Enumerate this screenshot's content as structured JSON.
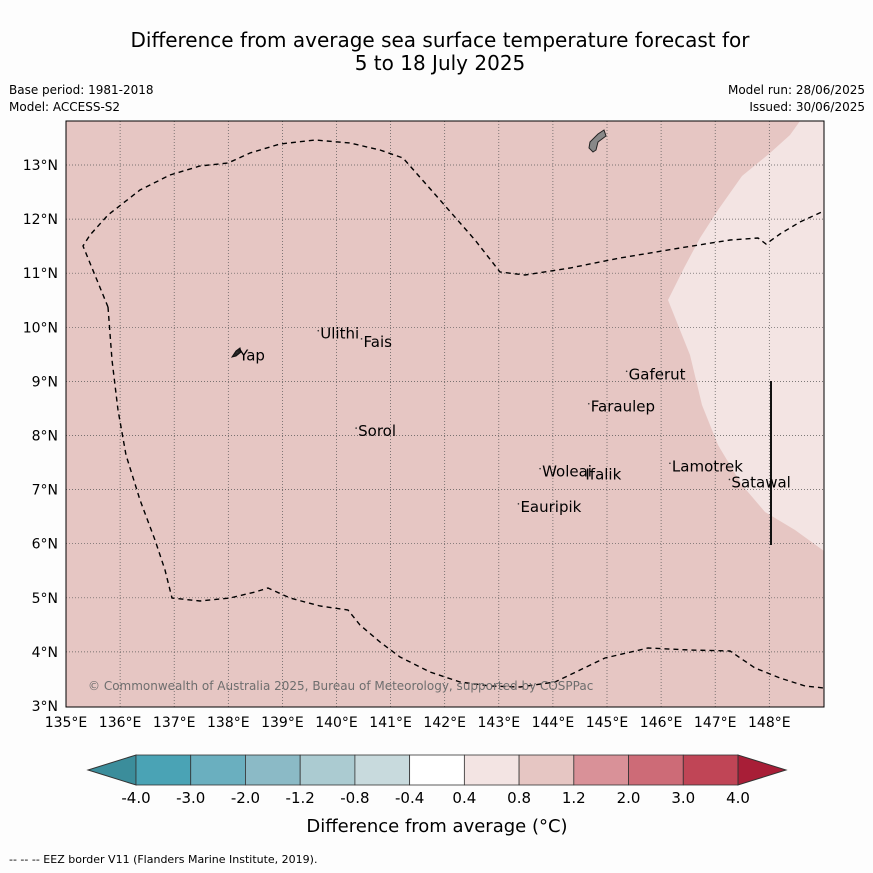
{
  "title_line1": "Difference from average sea surface temperature forecast for",
  "title_line2": "5 to 18 July 2025",
  "base_period": "Base period: 1981-2018",
  "model": "Model: ACCESS-S2",
  "model_run": "Model run: 28/06/2025",
  "issued": "Issued: 30/06/2025",
  "copyright": "© Commonwealth of Australia 2025, Bureau of Meteorology, supported by COSPPac",
  "colorbar_label": "Difference from average (°C)",
  "footer": "--  --  -- EEZ border V11 (Flanders Marine Institute, 2019).",
  "map": {
    "lon_ticks": [
      "135°E",
      "136°E",
      "137°E",
      "138°E",
      "139°E",
      "140°E",
      "141°E",
      "142°E",
      "143°E",
      "144°E",
      "145°E",
      "146°E",
      "147°E",
      "148°E"
    ],
    "lat_ticks": [
      "3°N",
      "4°N",
      "5°N",
      "6°N",
      "7°N",
      "8°N",
      "9°N",
      "10°N",
      "11°N",
      "12°N",
      "13°N"
    ],
    "places": [
      {
        "name": "Yap",
        "lon": 138.2,
        "lat": 9.5
      },
      {
        "name": "Ulithi",
        "lon": 139.7,
        "lat": 9.9
      },
      {
        "name": "Fais",
        "lon": 140.5,
        "lat": 9.75
      },
      {
        "name": "Sorol",
        "lon": 140.4,
        "lat": 8.1
      },
      {
        "name": "Gaferut",
        "lon": 145.4,
        "lat": 9.15
      },
      {
        "name": "Faraulep",
        "lon": 144.7,
        "lat": 8.55
      },
      {
        "name": "Woleai",
        "lon": 143.8,
        "lat": 7.35
      },
      {
        "name": "Ifalik",
        "lon": 144.6,
        "lat": 7.3
      },
      {
        "name": "Eauripik",
        "lon": 143.4,
        "lat": 6.7
      },
      {
        "name": "Lamotrek",
        "lon": 146.2,
        "lat": 7.45
      },
      {
        "name": "Satawal",
        "lon": 147.3,
        "lat": 7.15
      }
    ]
  },
  "colorbar": {
    "ticks": [
      "-4.0",
      "-3.0",
      "-2.0",
      "-1.2",
      "-0.8",
      "-0.4",
      "0.4",
      "0.8",
      "1.2",
      "2.0",
      "3.0",
      "4.0"
    ],
    "colors": [
      "#3b8d9b",
      "#4aa3b5",
      "#6aafbf",
      "#8bbac6",
      "#abcbd1",
      "#c8dadd",
      "#ffffff",
      "#f3e4e3",
      "#e6c6c3",
      "#d99198",
      "#cd6b77",
      "#c04556",
      "#a81e37"
    ]
  },
  "field_colors": {
    "main": "#e6c6c3",
    "warm_edge": "#f3e4e3"
  }
}
